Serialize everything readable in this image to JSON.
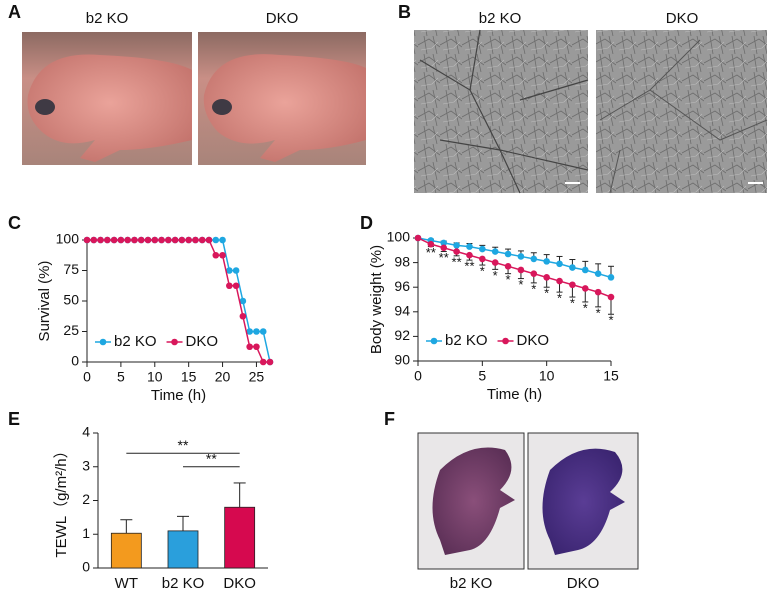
{
  "panels": {
    "A": {
      "label": "A",
      "captions": [
        "b2 KO",
        "DKO"
      ]
    },
    "B": {
      "label": "B",
      "captions": [
        "b2 KO",
        "DKO"
      ]
    },
    "C": {
      "label": "C"
    },
    "D": {
      "label": "D"
    },
    "E": {
      "label": "E"
    },
    "F": {
      "label": "F",
      "captions": [
        "b2 KO",
        "DKO"
      ]
    }
  },
  "chart_data": [
    {
      "type": "line",
      "xlabel": "Time (h)",
      "ylabel": "Survival (%)",
      "x": [
        0,
        1,
        2,
        3,
        4,
        5,
        6,
        7,
        8,
        9,
        10,
        11,
        12,
        13,
        14,
        15,
        16,
        17,
        18,
        19,
        20,
        21,
        22,
        23,
        24,
        25,
        26,
        27
      ],
      "series": [
        {
          "name": "b2 KO",
          "color": "#1ea7e1",
          "values": [
            100,
            100,
            100,
            100,
            100,
            100,
            100,
            100,
            100,
            100,
            100,
            100,
            100,
            100,
            100,
            100,
            100,
            100,
            100,
            100,
            100,
            75,
            75,
            50,
            25,
            25,
            25,
            0
          ]
        },
        {
          "name": "DKO",
          "color": "#d8175b",
          "values": [
            100,
            100,
            100,
            100,
            100,
            100,
            100,
            100,
            100,
            100,
            100,
            100,
            100,
            100,
            100,
            100,
            100,
            100,
            100,
            87.5,
            87.5,
            62.5,
            62.5,
            37.5,
            12.5,
            12.5,
            0,
            0
          ]
        }
      ],
      "xlim": [
        0,
        27
      ],
      "xticks": [
        0,
        5,
        10,
        15,
        20,
        25
      ],
      "ylim": [
        0,
        100
      ],
      "yticks": [
        0,
        25,
        50,
        75,
        100
      ],
      "legend": "lower left"
    },
    {
      "type": "line",
      "xlabel": "Time (h)",
      "ylabel": "Body weight (%)",
      "x": [
        0,
        1,
        2,
        3,
        4,
        5,
        6,
        7,
        8,
        9,
        10,
        11,
        12,
        13,
        14,
        15
      ],
      "series": [
        {
          "name": "b2 KO",
          "color": "#1ea7e1",
          "values": [
            100,
            99.8,
            99.6,
            99.4,
            99.3,
            99.1,
            98.9,
            98.7,
            98.5,
            98.3,
            98.1,
            97.9,
            97.6,
            97.4,
            97.1,
            96.8
          ],
          "errors": [
            0,
            0.1,
            0.15,
            0.2,
            0.25,
            0.3,
            0.35,
            0.4,
            0.45,
            0.5,
            0.55,
            0.6,
            0.65,
            0.7,
            0.8,
            0.9
          ],
          "error_direction": "up"
        },
        {
          "name": "DKO",
          "color": "#d8175b",
          "values": [
            100,
            99.5,
            99.2,
            98.9,
            98.6,
            98.3,
            98.0,
            97.7,
            97.4,
            97.1,
            96.8,
            96.5,
            96.2,
            95.9,
            95.6,
            95.2
          ],
          "errors": [
            0,
            0.2,
            0.3,
            0.35,
            0.4,
            0.5,
            0.55,
            0.6,
            0.7,
            0.75,
            0.8,
            0.9,
            1.0,
            1.1,
            1.2,
            1.4
          ],
          "error_direction": "down",
          "significance": [
            null,
            "**",
            "**",
            "**",
            "**",
            "*",
            "*",
            "*",
            "*",
            "*",
            "*",
            "*",
            "*",
            "*",
            "*",
            "*"
          ]
        }
      ],
      "xlim": [
        0,
        15
      ],
      "xticks": [
        0,
        5,
        10,
        15
      ],
      "ylim": [
        90,
        100
      ],
      "yticks": [
        90,
        92,
        94,
        96,
        98,
        100
      ],
      "legend": "lower left"
    },
    {
      "type": "bar",
      "ylabel": "TEWL（g/m²/h）",
      "categories": [
        "WT",
        "b2 KO",
        "DKO"
      ],
      "values": [
        1.03,
        1.1,
        1.8
      ],
      "errors": [
        0.4,
        0.43,
        0.72
      ],
      "colors": [
        "#f39a1e",
        "#2a9fdc",
        "#d6094f"
      ],
      "ylim": [
        0,
        4
      ],
      "yticks": [
        0,
        1,
        2,
        3,
        4
      ],
      "brackets": [
        {
          "from": 0,
          "to": 2,
          "y": 3.4,
          "label": "**"
        },
        {
          "from": 1,
          "to": 2,
          "y": 3.0,
          "label": "**"
        }
      ]
    }
  ]
}
